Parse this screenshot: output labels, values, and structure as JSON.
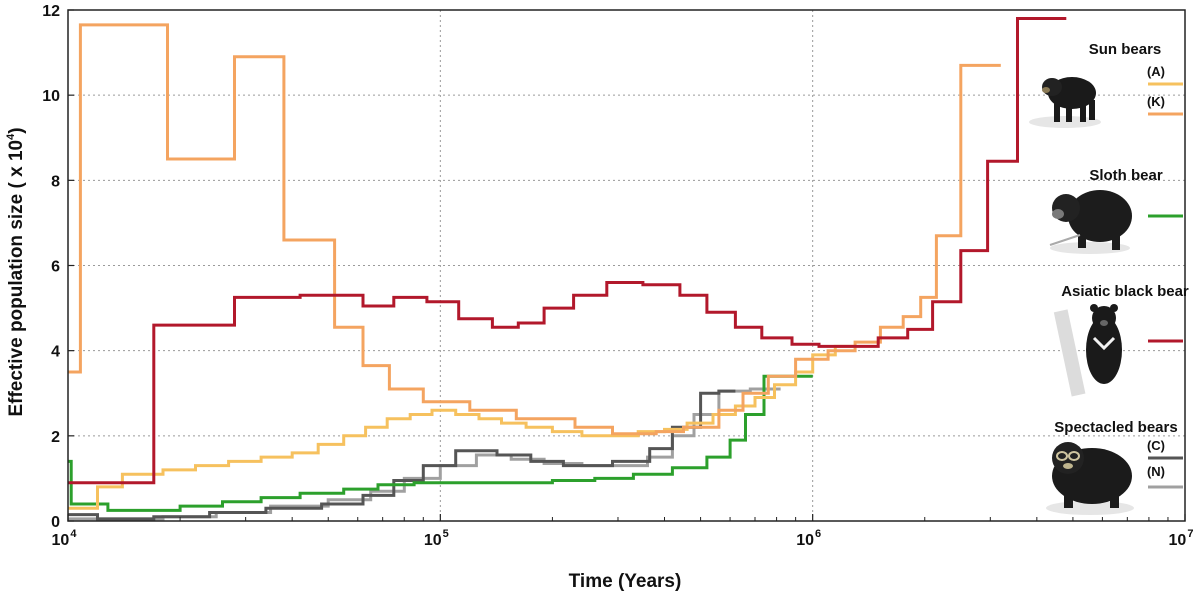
{
  "chart_data": {
    "type": "line",
    "xlabel": "Time (Years)",
    "ylabel": "Effective population size ( x 10",
    "ylabel_exp": "4",
    "ylabel_close": ")",
    "x_scale": "log",
    "xlim": [
      10000,
      10000000
    ],
    "ylim": [
      0,
      12
    ],
    "x_ticks": [
      {
        "value": 10000,
        "base": "10",
        "exp": "4"
      },
      {
        "value": 100000,
        "base": "10",
        "exp": "5"
      },
      {
        "value": 1000000,
        "base": "10",
        "exp": "6"
      },
      {
        "value": 10000000,
        "base": "10",
        "exp": "7"
      }
    ],
    "y_ticks": [
      0,
      2,
      4,
      6,
      8,
      10,
      12
    ],
    "grid": true,
    "legend_position": "right",
    "legend_groups": [
      {
        "title": "Sun bears",
        "entries": [
          {
            "code": "(A)",
            "series": 0
          },
          {
            "code": "(K)",
            "series": 1
          }
        ]
      },
      {
        "title": "Sloth bear",
        "entries": [
          {
            "code": "",
            "series": 2
          }
        ]
      },
      {
        "title": "Asiatic black bear",
        "entries": [
          {
            "code": "",
            "series": 3
          }
        ]
      },
      {
        "title": "Spectacled bears",
        "entries": [
          {
            "code": "(C)",
            "series": 4
          },
          {
            "code": "(N)",
            "series": 5
          }
        ]
      }
    ],
    "series": [
      {
        "color": "#f6c15e",
        "points": [
          [
            10000,
            0.3
          ],
          [
            12000,
            0.3
          ],
          [
            12000,
            0.8
          ],
          [
            14000,
            0.8
          ],
          [
            14000,
            1.1
          ],
          [
            18000,
            1.1
          ],
          [
            18000,
            1.2
          ],
          [
            22000,
            1.2
          ],
          [
            22000,
            1.3
          ],
          [
            27000,
            1.3
          ],
          [
            27000,
            1.4
          ],
          [
            33000,
            1.4
          ],
          [
            33000,
            1.5
          ],
          [
            40000,
            1.5
          ],
          [
            40000,
            1.6
          ],
          [
            47000,
            1.6
          ],
          [
            47000,
            1.8
          ],
          [
            55000,
            1.8
          ],
          [
            55000,
            2.0
          ],
          [
            63000,
            2.0
          ],
          [
            63000,
            2.2
          ],
          [
            72000,
            2.2
          ],
          [
            72000,
            2.4
          ],
          [
            83000,
            2.4
          ],
          [
            83000,
            2.5
          ],
          [
            95000,
            2.5
          ],
          [
            95000,
            2.6
          ],
          [
            110000,
            2.6
          ],
          [
            110000,
            2.5
          ],
          [
            127000,
            2.5
          ],
          [
            127000,
            2.4
          ],
          [
            146000,
            2.4
          ],
          [
            146000,
            2.3
          ],
          [
            170000,
            2.3
          ],
          [
            170000,
            2.2
          ],
          [
            200000,
            2.2
          ],
          [
            200000,
            2.1
          ],
          [
            240000,
            2.1
          ],
          [
            240000,
            2.0
          ],
          [
            340000,
            2.0
          ],
          [
            340000,
            2.1
          ],
          [
            400000,
            2.1
          ],
          [
            400000,
            2.15
          ],
          [
            460000,
            2.15
          ],
          [
            460000,
            2.3
          ],
          [
            540000,
            2.3
          ],
          [
            540000,
            2.5
          ],
          [
            620000,
            2.5
          ],
          [
            620000,
            2.7
          ],
          [
            700000,
            2.7
          ],
          [
            700000,
            2.9
          ],
          [
            790000,
            2.9
          ],
          [
            790000,
            3.2
          ],
          [
            900000,
            3.2
          ],
          [
            900000,
            3.5
          ],
          [
            1000000,
            3.5
          ],
          [
            1000000,
            3.9
          ],
          [
            1150000,
            3.9
          ],
          [
            1150000,
            4.1
          ],
          [
            1300000,
            4.1
          ]
        ]
      },
      {
        "color": "#f4a460",
        "points": [
          [
            10000,
            3.5
          ],
          [
            10800,
            3.5
          ],
          [
            10800,
            11.65
          ],
          [
            18500,
            11.65
          ],
          [
            18500,
            8.5
          ],
          [
            28000,
            8.5
          ],
          [
            28000,
            10.9
          ],
          [
            38000,
            10.9
          ],
          [
            38000,
            6.6
          ],
          [
            52000,
            6.6
          ],
          [
            52000,
            4.55
          ],
          [
            62000,
            4.55
          ],
          [
            62000,
            3.65
          ],
          [
            73000,
            3.65
          ],
          [
            73000,
            3.1
          ],
          [
            90000,
            3.1
          ],
          [
            90000,
            2.8
          ],
          [
            120000,
            2.8
          ],
          [
            120000,
            2.6
          ],
          [
            160000,
            2.6
          ],
          [
            160000,
            2.4
          ],
          [
            230000,
            2.4
          ],
          [
            230000,
            2.2
          ],
          [
            290000,
            2.2
          ],
          [
            290000,
            2.05
          ],
          [
            380000,
            2.05
          ],
          [
            380000,
            2.1
          ],
          [
            450000,
            2.1
          ],
          [
            450000,
            2.2
          ],
          [
            560000,
            2.2
          ],
          [
            560000,
            2.6
          ],
          [
            650000,
            2.6
          ],
          [
            650000,
            3.0
          ],
          [
            760000,
            3.0
          ],
          [
            760000,
            3.4
          ],
          [
            900000,
            3.4
          ],
          [
            900000,
            3.8
          ],
          [
            1100000,
            3.8
          ],
          [
            1100000,
            4.0
          ],
          [
            1300000,
            4.0
          ],
          [
            1300000,
            4.2
          ],
          [
            1520000,
            4.2
          ],
          [
            1520000,
            4.55
          ],
          [
            1750000,
            4.55
          ],
          [
            1750000,
            4.8
          ],
          [
            1950000,
            4.8
          ],
          [
            1950000,
            5.25
          ],
          [
            2150000,
            5.25
          ],
          [
            2150000,
            6.7
          ],
          [
            2500000,
            6.7
          ],
          [
            2500000,
            10.7
          ],
          [
            3200000,
            10.7
          ]
        ]
      },
      {
        "color": "#2ca02c",
        "points": [
          [
            10000,
            1.4
          ],
          [
            10200,
            1.4
          ],
          [
            10200,
            0.4
          ],
          [
            12800,
            0.4
          ],
          [
            12800,
            0.25
          ],
          [
            20000,
            0.25
          ],
          [
            20000,
            0.35
          ],
          [
            26000,
            0.35
          ],
          [
            26000,
            0.45
          ],
          [
            33000,
            0.45
          ],
          [
            33000,
            0.55
          ],
          [
            42000,
            0.55
          ],
          [
            42000,
            0.65
          ],
          [
            55000,
            0.65
          ],
          [
            55000,
            0.75
          ],
          [
            68000,
            0.75
          ],
          [
            68000,
            0.85
          ],
          [
            85000,
            0.85
          ],
          [
            85000,
            0.9
          ],
          [
            200000,
            0.9
          ],
          [
            200000,
            0.95
          ],
          [
            260000,
            0.95
          ],
          [
            260000,
            1.0
          ],
          [
            330000,
            1.0
          ],
          [
            330000,
            1.1
          ],
          [
            420000,
            1.1
          ],
          [
            420000,
            1.25
          ],
          [
            520000,
            1.25
          ],
          [
            520000,
            1.5
          ],
          [
            600000,
            1.5
          ],
          [
            600000,
            1.9
          ],
          [
            660000,
            1.9
          ],
          [
            660000,
            2.5
          ],
          [
            740000,
            2.5
          ],
          [
            740000,
            3.4
          ],
          [
            820000,
            3.4
          ],
          [
            820000,
            3.4
          ],
          [
            1000000,
            3.4
          ]
        ]
      },
      {
        "color": "#b2182b",
        "points": [
          [
            10000,
            0.9
          ],
          [
            17000,
            0.9
          ],
          [
            17000,
            4.6
          ],
          [
            28000,
            4.6
          ],
          [
            28000,
            5.25
          ],
          [
            42000,
            5.25
          ],
          [
            42000,
            5.3
          ],
          [
            62000,
            5.3
          ],
          [
            62000,
            5.05
          ],
          [
            75000,
            5.05
          ],
          [
            75000,
            5.25
          ],
          [
            92000,
            5.25
          ],
          [
            92000,
            5.15
          ],
          [
            112000,
            5.15
          ],
          [
            112000,
            4.75
          ],
          [
            138000,
            4.75
          ],
          [
            138000,
            4.55
          ],
          [
            162000,
            4.55
          ],
          [
            162000,
            4.65
          ],
          [
            190000,
            4.65
          ],
          [
            190000,
            5.0
          ],
          [
            228000,
            5.0
          ],
          [
            228000,
            5.3
          ],
          [
            280000,
            5.3
          ],
          [
            280000,
            5.6
          ],
          [
            350000,
            5.6
          ],
          [
            350000,
            5.55
          ],
          [
            440000,
            5.55
          ],
          [
            440000,
            5.3
          ],
          [
            520000,
            5.3
          ],
          [
            520000,
            4.9
          ],
          [
            620000,
            4.9
          ],
          [
            620000,
            4.55
          ],
          [
            730000,
            4.55
          ],
          [
            730000,
            4.3
          ],
          [
            880000,
            4.3
          ],
          [
            880000,
            4.15
          ],
          [
            1040000,
            4.15
          ],
          [
            1040000,
            4.1
          ],
          [
            1240000,
            4.1
          ],
          [
            1240000,
            4.1
          ],
          [
            1500000,
            4.1
          ],
          [
            1500000,
            4.3
          ],
          [
            1800000,
            4.3
          ],
          [
            1800000,
            4.5
          ],
          [
            2100000,
            4.5
          ],
          [
            2100000,
            5.15
          ],
          [
            2500000,
            5.15
          ],
          [
            2500000,
            6.35
          ],
          [
            2950000,
            6.35
          ],
          [
            2950000,
            8.45
          ],
          [
            3550000,
            8.45
          ],
          [
            3550000,
            11.8
          ],
          [
            4800000,
            11.8
          ]
        ]
      },
      {
        "color": "#555555",
        "points": [
          [
            10000,
            0.15
          ],
          [
            12000,
            0.15
          ],
          [
            12000,
            0.05
          ],
          [
            17000,
            0.05
          ],
          [
            17000,
            0.1
          ],
          [
            24000,
            0.1
          ],
          [
            24000,
            0.2
          ],
          [
            34000,
            0.2
          ],
          [
            34000,
            0.3
          ],
          [
            48000,
            0.3
          ],
          [
            48000,
            0.4
          ],
          [
            62000,
            0.4
          ],
          [
            62000,
            0.6
          ],
          [
            75000,
            0.6
          ],
          [
            75000,
            0.95
          ],
          [
            90000,
            0.95
          ],
          [
            90000,
            1.3
          ],
          [
            110000,
            1.3
          ],
          [
            110000,
            1.65
          ],
          [
            142000,
            1.65
          ],
          [
            142000,
            1.55
          ],
          [
            175000,
            1.55
          ],
          [
            175000,
            1.4
          ],
          [
            214000,
            1.4
          ],
          [
            214000,
            1.3
          ],
          [
            290000,
            1.3
          ],
          [
            290000,
            1.4
          ],
          [
            365000,
            1.4
          ],
          [
            365000,
            1.7
          ],
          [
            420000,
            1.7
          ],
          [
            420000,
            2.2
          ],
          [
            500000,
            2.2
          ],
          [
            500000,
            3.0
          ],
          [
            560000,
            3.0
          ],
          [
            560000,
            3.05
          ],
          [
            620000,
            3.05
          ]
        ]
      },
      {
        "color": "#a0a0a0",
        "points": [
          [
            10000,
            0.05
          ],
          [
            14000,
            0.05
          ],
          [
            14000,
            0.05
          ],
          [
            18000,
            0.05
          ],
          [
            18000,
            0.1
          ],
          [
            25000,
            0.1
          ],
          [
            25000,
            0.2
          ],
          [
            35000,
            0.2
          ],
          [
            35000,
            0.35
          ],
          [
            50000,
            0.35
          ],
          [
            50000,
            0.5
          ],
          [
            65000,
            0.5
          ],
          [
            65000,
            0.7
          ],
          [
            80000,
            0.7
          ],
          [
            80000,
            1.0
          ],
          [
            100000,
            1.0
          ],
          [
            100000,
            1.3
          ],
          [
            125000,
            1.3
          ],
          [
            125000,
            1.55
          ],
          [
            155000,
            1.55
          ],
          [
            155000,
            1.45
          ],
          [
            190000,
            1.45
          ],
          [
            190000,
            1.35
          ],
          [
            240000,
            1.35
          ],
          [
            240000,
            1.3
          ],
          [
            305000,
            1.3
          ],
          [
            305000,
            1.3
          ],
          [
            360000,
            1.3
          ],
          [
            360000,
            1.5
          ],
          [
            420000,
            1.5
          ],
          [
            420000,
            2.0
          ],
          [
            480000,
            2.0
          ],
          [
            480000,
            2.5
          ],
          [
            560000,
            2.5
          ],
          [
            560000,
            3.05
          ],
          [
            680000,
            3.05
          ],
          [
            680000,
            3.1
          ],
          [
            820000,
            3.1
          ]
        ]
      }
    ]
  }
}
